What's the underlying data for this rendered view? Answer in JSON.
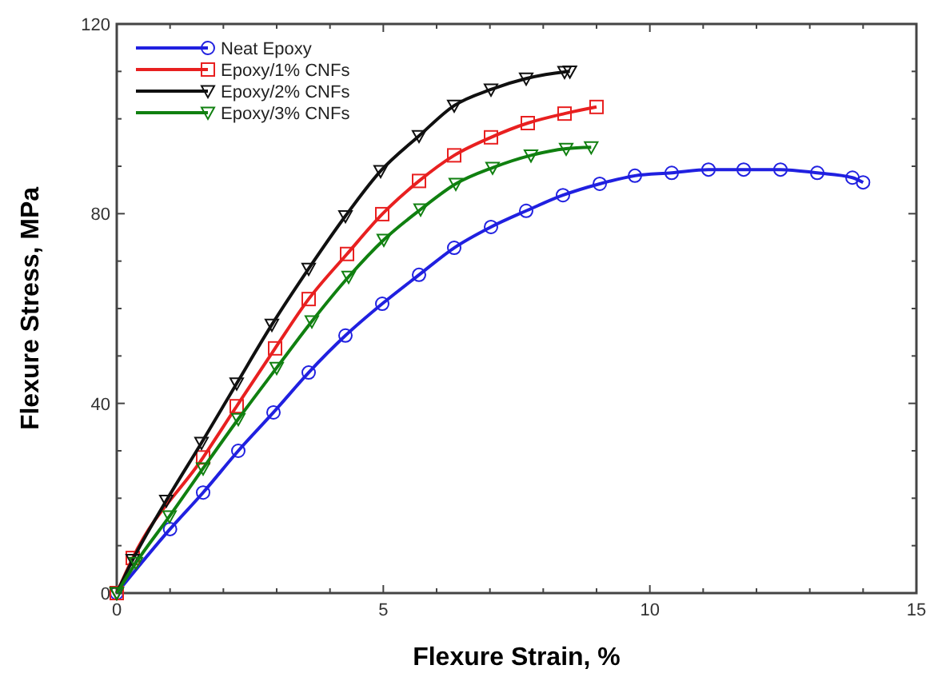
{
  "chart_data": {
    "type": "line",
    "xlabel": "Flexure Strain, %",
    "ylabel": "Flexure Stress, MPa",
    "xlim": [
      0,
      15
    ],
    "ylim": [
      0,
      120
    ],
    "xticks": [
      0,
      {
        "value": 1,
        "label": null
      },
      {
        "value": 2,
        "label": null
      },
      {
        "value": 3,
        "label": null
      },
      {
        "value": 4,
        "label": null
      },
      5,
      {
        "value": 6,
        "label": null
      },
      {
        "value": 7,
        "label": null
      },
      {
        "value": 8,
        "label": null
      },
      {
        "value": 9,
        "label": null
      },
      10,
      {
        "value": 11,
        "label": null
      },
      {
        "value": 12,
        "label": null
      },
      {
        "value": 13,
        "label": null
      },
      {
        "value": 14,
        "label": null
      },
      15
    ],
    "yticks": [
      0,
      {
        "value": 10,
        "label": null
      },
      {
        "value": 20,
        "label": null
      },
      {
        "value": 30,
        "label": null
      },
      40,
      {
        "value": 50,
        "label": null
      },
      {
        "value": 60,
        "label": null
      },
      {
        "value": 70,
        "label": null
      },
      80,
      {
        "value": 90,
        "label": null
      },
      {
        "value": 100,
        "label": null
      },
      {
        "value": 110,
        "label": null
      },
      120
    ],
    "grid": false,
    "legend": "top left",
    "line_style": "solid",
    "series": [
      {
        "name": "Neat Epoxy",
        "color": "#2020e0",
        "marker": "circle",
        "x": [
          0,
          0.36,
          1.0,
          1.62,
          2.28,
          2.94,
          3.6,
          4.29,
          4.98,
          5.67,
          6.33,
          7.02,
          7.68,
          8.37,
          9.06,
          9.72,
          10.41,
          11.1,
          11.76,
          12.45,
          13.14,
          13.8,
          14.0
        ],
        "values": [
          0,
          null,
          13.5,
          21.2,
          30.0,
          38.1,
          46.5,
          54.3,
          61.0,
          67.1,
          72.8,
          77.2,
          80.6,
          83.9,
          86.3,
          88.0,
          88.6,
          89.3,
          89.3,
          89.3,
          88.6,
          87.6,
          86.6
        ]
      },
      {
        "name": "Epoxy/1% CNFs",
        "color": "#e82020",
        "marker": "square",
        "x": [
          0,
          0.3,
          0.96,
          1.62,
          2.25,
          2.97,
          3.6,
          4.32,
          4.98,
          5.67,
          6.33,
          7.02,
          7.71,
          8.4,
          9.0
        ],
        "values": [
          0,
          7.4,
          null,
          28.6,
          39.4,
          51.6,
          62,
          71.5,
          79.9,
          86.9,
          92.3,
          96.1,
          99.1,
          101.1,
          102.5
        ]
      },
      {
        "name": "Epoxy/2% CNFs",
        "color": "#101010",
        "marker": "triangle",
        "x": [
          0,
          0.3,
          0.93,
          1.59,
          2.25,
          2.91,
          3.6,
          4.29,
          4.95,
          5.67,
          6.33,
          7.02,
          7.68,
          8.4,
          8.5
        ],
        "values": [
          0,
          7,
          19.5,
          31.7,
          44.2,
          56.6,
          68.4,
          79.5,
          89,
          96.4,
          102.8,
          106.2,
          108.5,
          109.9,
          110
        ]
      },
      {
        "name": "Epoxy/3% CNFs",
        "color": "#108010",
        "marker": "triangle",
        "x": [
          0,
          0.36,
          0.99,
          1.62,
          2.28,
          3.0,
          3.66,
          4.35,
          5.01,
          5.7,
          6.36,
          7.05,
          7.77,
          8.43,
          8.9
        ],
        "values": [
          0,
          6.4,
          16.2,
          26.3,
          36.7,
          47.5,
          57.3,
          66.7,
          74.5,
          80.9,
          86.3,
          89.7,
          92.3,
          93.7,
          94
        ]
      }
    ]
  }
}
